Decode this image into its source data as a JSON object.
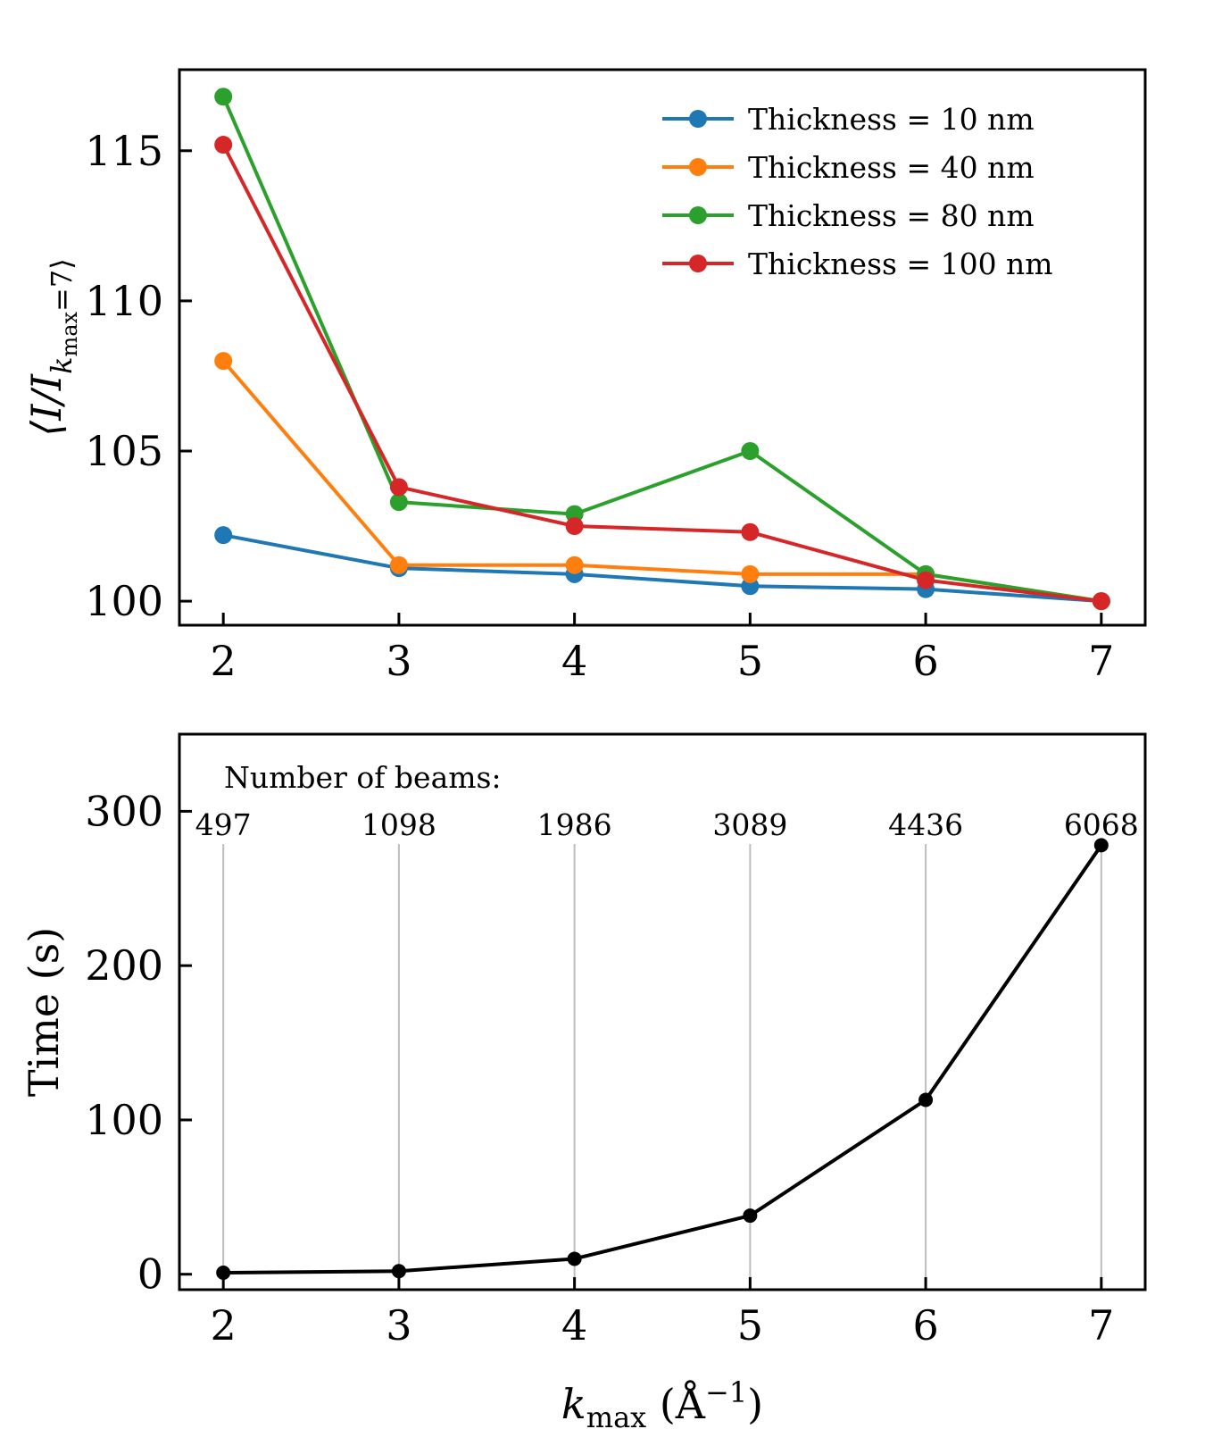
{
  "chart_data": [
    {
      "type": "line",
      "x": [
        2,
        3,
        4,
        5,
        6,
        7
      ],
      "ylabel": "⟨I/I",
      "ylabel_sub": "k",
      "ylabel_subsub": "max",
      "ylabel_tail": "=7⟩",
      "xlim": [
        1.75,
        7.25
      ],
      "ylim": [
        99.2,
        117.7
      ],
      "yticks": [
        100,
        105,
        110,
        115
      ],
      "xticks": [
        2,
        3,
        4,
        5,
        6,
        7
      ],
      "legend_position": "top-right",
      "series": [
        {
          "name": "Thickness = 10 nm",
          "color": "#1f77b4",
          "values": [
            102.2,
            101.1,
            100.9,
            100.5,
            100.4,
            100.0
          ]
        },
        {
          "name": "Thickness = 40 nm",
          "color": "#ff7f0e",
          "values": [
            108.0,
            101.2,
            101.2,
            100.9,
            100.9,
            100.0
          ]
        },
        {
          "name": "Thickness = 80 nm",
          "color": "#2ca02c",
          "values": [
            116.8,
            103.3,
            102.9,
            105.0,
            100.9,
            100.0
          ]
        },
        {
          "name": "Thickness = 100 nm",
          "color": "#d62728",
          "values": [
            115.2,
            103.8,
            102.5,
            102.3,
            100.7,
            100.0
          ]
        }
      ]
    },
    {
      "type": "line",
      "x": [
        2,
        3,
        4,
        5,
        6,
        7
      ],
      "values": [
        1,
        2,
        10,
        38,
        113,
        278
      ],
      "color": "#000000",
      "xlabel": "k",
      "xlabel_sub": "max",
      "xlabel_unit": " (Å",
      "xlabel_sup": "−1",
      "xlabel_close": ")",
      "ylabel": "Time (s)",
      "xlim": [
        1.75,
        7.25
      ],
      "ylim": [
        -10,
        350
      ],
      "yticks": [
        0,
        100,
        200,
        300
      ],
      "xticks": [
        2,
        3,
        4,
        5,
        6,
        7
      ],
      "annotation_title": "Number of beams:",
      "beam_counts": [
        "497",
        "1098",
        "1986",
        "3089",
        "4436",
        "6068"
      ],
      "vertical_gridlines": true
    }
  ]
}
